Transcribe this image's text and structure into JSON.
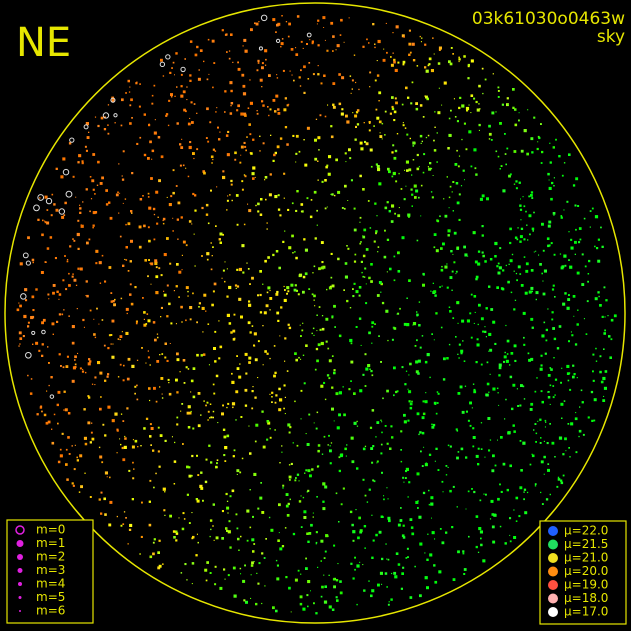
{
  "corner_label": "NE",
  "image_id": "03k61030o0463w",
  "mode": "sky",
  "magnitude_legend": [
    "m=0",
    "m=1",
    "m=2",
    "m=3",
    "m=4",
    "m=5",
    "m=6"
  ],
  "brightness_legend": [
    {
      "label": "μ=22.0",
      "color": "#2060ff"
    },
    {
      "label": "μ=21.5",
      "color": "#20e060"
    },
    {
      "label": "μ=21.0",
      "color": "#f0e020"
    },
    {
      "label": "μ=20.0",
      "color": "#ff8c10"
    },
    {
      "label": "μ=19.0",
      "color": "#ff5040"
    },
    {
      "label": "μ=18.0",
      "color": "#ffb0b0"
    },
    {
      "label": "μ=17.0",
      "color": "#ffffff"
    }
  ]
}
